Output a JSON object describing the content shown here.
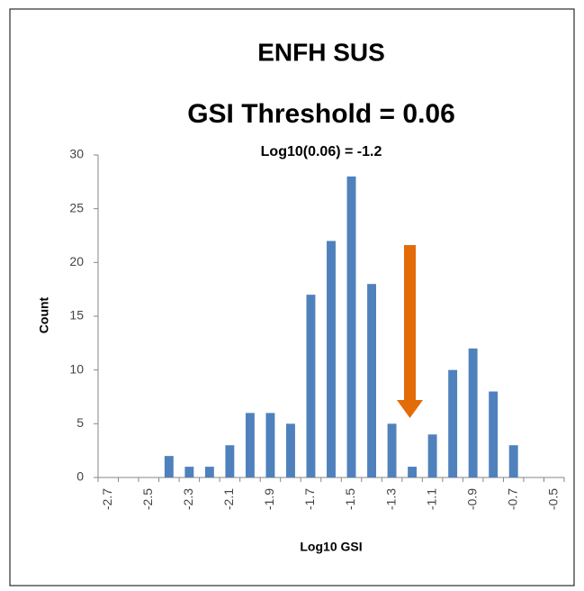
{
  "chart_data": {
    "type": "bar",
    "title": "ENFH SUS",
    "subtitle": "GSI Threshold = 0.06",
    "annotation": "Log10(0.06) = -1.2",
    "x_label": "Log10 GSI",
    "y_label": "Count",
    "categories": [
      "-2.7",
      null,
      "-2.5",
      null,
      "-2.3",
      null,
      "-2.1",
      null,
      "-1.9",
      null,
      "-1.7",
      null,
      "-1.5",
      null,
      "-1.3",
      null,
      "-1.1",
      null,
      "-0.9",
      null,
      "-0.7",
      null,
      "-0.5"
    ],
    "values": [
      0,
      0,
      0,
      2,
      1,
      1,
      3,
      6,
      6,
      5,
      17,
      22,
      28,
      18,
      5,
      1,
      4,
      10,
      12,
      8,
      3,
      0,
      0
    ],
    "color": "#4f81bd",
    "ylim": [
      0,
      30
    ],
    "yticks": [
      0,
      5,
      10,
      15,
      20,
      25,
      30
    ],
    "grid": false
  }
}
